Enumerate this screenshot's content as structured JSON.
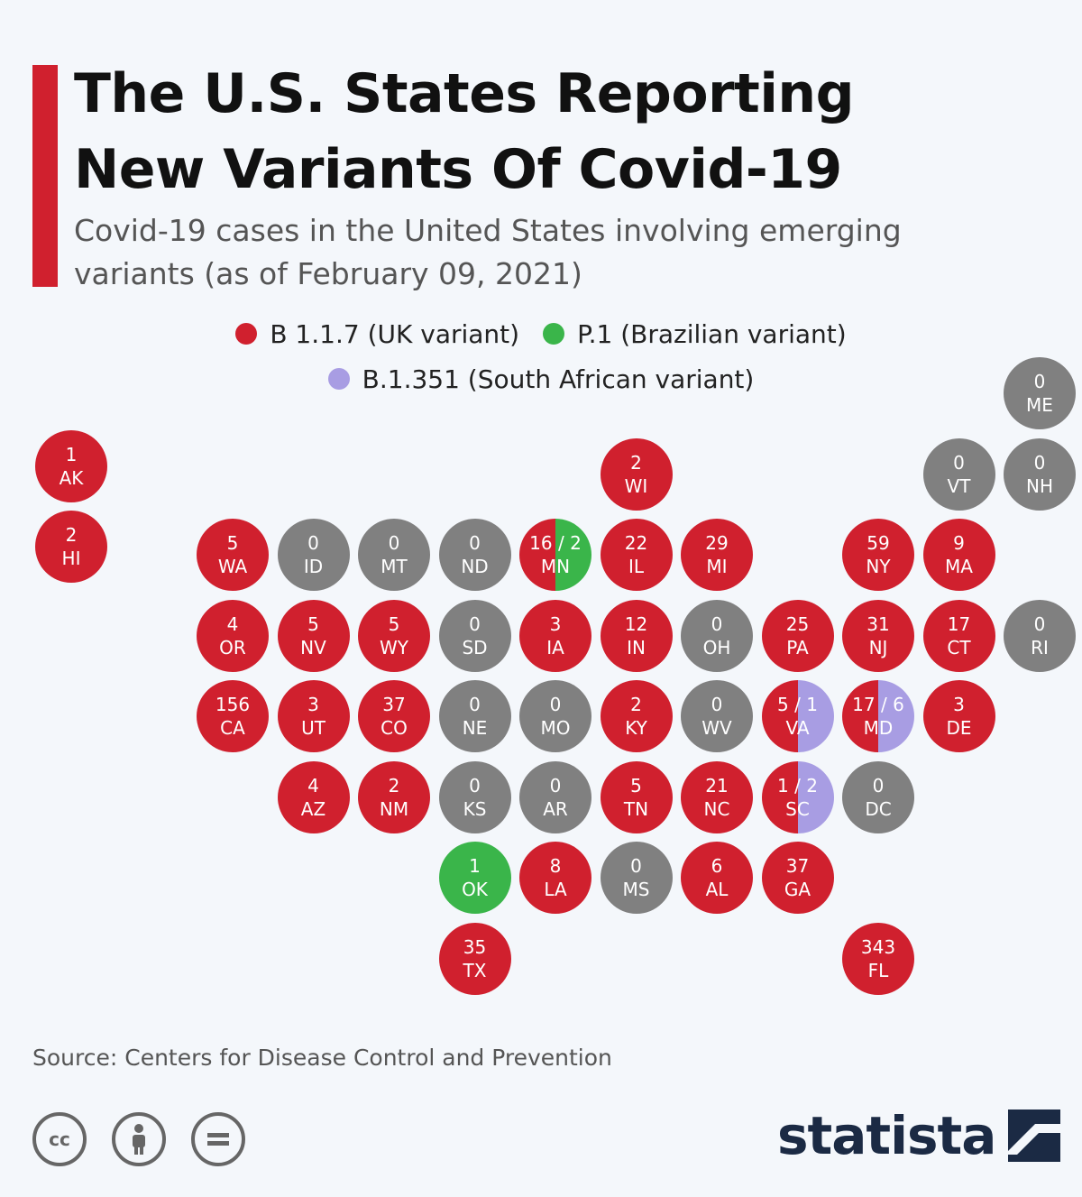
{
  "title_line1": "The U.S. States Reporting",
  "title_line2": "New Variants Of Covid-19",
  "subtitle": "Covid-19 cases in the United States involving emerging variants (as of February 09, 2021)",
  "legend": {
    "uk": "B 1.1.7 (UK variant)",
    "br": "P.1 (Brazilian variant)",
    "sa": "B.1.351 (South African variant)"
  },
  "colors": {
    "uk": "#d0202e",
    "br": "#3ab54a",
    "sa": "#a89de3",
    "none": "#808080"
  },
  "map_data": [
    {
      "st": "ME",
      "uk": 0,
      "col": 12,
      "row": 0
    },
    {
      "st": "AK",
      "uk": 1,
      "col": 0,
      "row": 0.9
    },
    {
      "st": "WI",
      "uk": 2,
      "col": 7,
      "row": 1
    },
    {
      "st": "VT",
      "uk": 0,
      "col": 11,
      "row": 1
    },
    {
      "st": "NH",
      "uk": 0,
      "col": 12,
      "row": 1
    },
    {
      "st": "HI",
      "uk": 2,
      "col": 0,
      "row": 1.9
    },
    {
      "st": "WA",
      "uk": 5,
      "col": 2,
      "row": 2
    },
    {
      "st": "ID",
      "uk": 0,
      "col": 3,
      "row": 2
    },
    {
      "st": "MT",
      "uk": 0,
      "col": 4,
      "row": 2
    },
    {
      "st": "ND",
      "uk": 0,
      "col": 5,
      "row": 2
    },
    {
      "st": "MN",
      "uk": 16,
      "br": 2,
      "col": 6,
      "row": 2
    },
    {
      "st": "IL",
      "uk": 22,
      "col": 7,
      "row": 2
    },
    {
      "st": "MI",
      "uk": 29,
      "col": 8,
      "row": 2
    },
    {
      "st": "NY",
      "uk": 59,
      "col": 10,
      "row": 2
    },
    {
      "st": "MA",
      "uk": 9,
      "col": 11,
      "row": 2
    },
    {
      "st": "OR",
      "uk": 4,
      "col": 2,
      "row": 3
    },
    {
      "st": "NV",
      "uk": 5,
      "col": 3,
      "row": 3
    },
    {
      "st": "WY",
      "uk": 5,
      "col": 4,
      "row": 3
    },
    {
      "st": "SD",
      "uk": 0,
      "col": 5,
      "row": 3
    },
    {
      "st": "IA",
      "uk": 3,
      "col": 6,
      "row": 3
    },
    {
      "st": "IN",
      "uk": 12,
      "col": 7,
      "row": 3
    },
    {
      "st": "OH",
      "uk": 0,
      "col": 8,
      "row": 3
    },
    {
      "st": "PA",
      "uk": 25,
      "col": 9,
      "row": 3
    },
    {
      "st": "NJ",
      "uk": 31,
      "col": 10,
      "row": 3
    },
    {
      "st": "CT",
      "uk": 17,
      "col": 11,
      "row": 3
    },
    {
      "st": "RI",
      "uk": 0,
      "col": 12,
      "row": 3
    },
    {
      "st": "CA",
      "uk": 156,
      "col": 2,
      "row": 4
    },
    {
      "st": "UT",
      "uk": 3,
      "col": 3,
      "row": 4
    },
    {
      "st": "CO",
      "uk": 37,
      "col": 4,
      "row": 4
    },
    {
      "st": "NE",
      "uk": 0,
      "col": 5,
      "row": 4
    },
    {
      "st": "MO",
      "uk": 0,
      "col": 6,
      "row": 4
    },
    {
      "st": "KY",
      "uk": 2,
      "col": 7,
      "row": 4
    },
    {
      "st": "WV",
      "uk": 0,
      "col": 8,
      "row": 4
    },
    {
      "st": "VA",
      "uk": 5,
      "sa": 1,
      "col": 9,
      "row": 4
    },
    {
      "st": "MD",
      "uk": 17,
      "sa": 6,
      "col": 10,
      "row": 4
    },
    {
      "st": "DE",
      "uk": 3,
      "col": 11,
      "row": 4
    },
    {
      "st": "AZ",
      "uk": 4,
      "col": 3,
      "row": 5
    },
    {
      "st": "NM",
      "uk": 2,
      "col": 4,
      "row": 5
    },
    {
      "st": "KS",
      "uk": 0,
      "col": 5,
      "row": 5
    },
    {
      "st": "AR",
      "uk": 0,
      "col": 6,
      "row": 5
    },
    {
      "st": "TN",
      "uk": 5,
      "col": 7,
      "row": 5
    },
    {
      "st": "NC",
      "uk": 21,
      "col": 8,
      "row": 5
    },
    {
      "st": "SC",
      "uk": 1,
      "sa": 2,
      "col": 9,
      "row": 5
    },
    {
      "st": "DC",
      "uk": 0,
      "col": 10,
      "row": 5
    },
    {
      "st": "OK",
      "uk": 0,
      "br": 1,
      "col": 5,
      "row": 6
    },
    {
      "st": "LA",
      "uk": 8,
      "col": 6,
      "row": 6
    },
    {
      "st": "MS",
      "uk": 0,
      "col": 7,
      "row": 6
    },
    {
      "st": "AL",
      "uk": 6,
      "col": 8,
      "row": 6
    },
    {
      "st": "GA",
      "uk": 37,
      "col": 9,
      "row": 6
    },
    {
      "st": "TX",
      "uk": 35,
      "col": 5,
      "row": 7
    },
    {
      "st": "FL",
      "uk": 343,
      "col": 10,
      "row": 7
    }
  ],
  "source": "Source: Centers for Disease Control and Prevention",
  "brand": "statista"
}
